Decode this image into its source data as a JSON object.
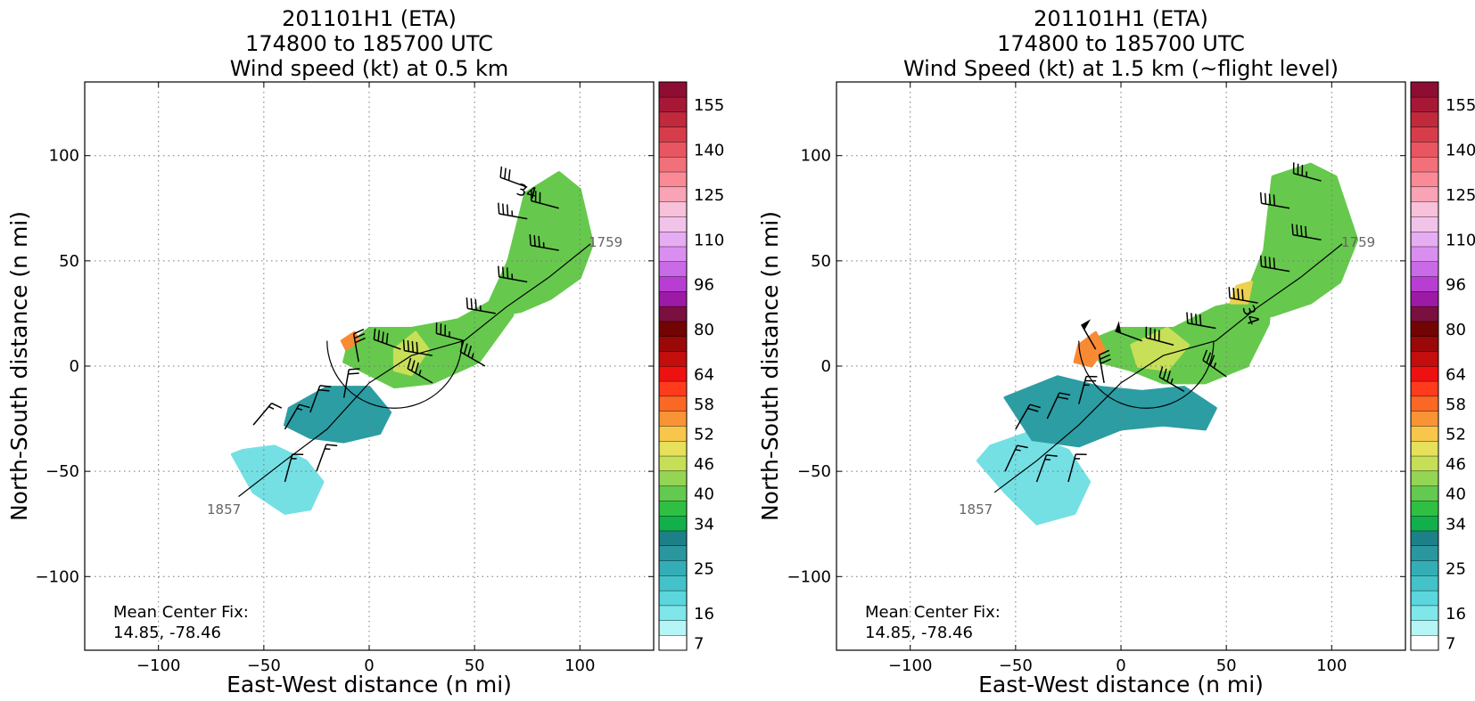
{
  "colors": {
    "ink": "#000000",
    "grid": "#777777",
    "track_label": "#666666",
    "rain_gray": "#6f6f6f"
  },
  "chart_data": [
    {
      "type": "heatmap",
      "title_lines": [
        "201101H1 (ETA)",
        "174800 to 185700 UTC",
        "Wind speed (kt) at 0.5 km"
      ],
      "xlabel": "East-West distance (n mi)",
      "ylabel": "North-South distance (n mi)",
      "xlim": [
        -135,
        135
      ],
      "ylim": [
        -135,
        135
      ],
      "xticks": [
        -100,
        -50,
        0,
        50,
        100
      ],
      "yticks": [
        -100,
        -50,
        0,
        50,
        100
      ],
      "xticklabels": [
        "−100",
        "−50",
        "0",
        "50",
        "100"
      ],
      "yticklabels": [
        "−100",
        "−50",
        "0",
        "50",
        "100"
      ],
      "grid": true,
      "annotation": {
        "line1": "Mean Center Fix:",
        "line2": "14.85, -78.46"
      },
      "track_labels": {
        "start": "1759",
        "end": "1857"
      },
      "contour_label": "34",
      "colorbar": {
        "tick_labels": [
          "7",
          "16",
          "25",
          "34",
          "40",
          "46",
          "52",
          "58",
          "64",
          "80",
          "96",
          "110",
          "125",
          "140",
          "155"
        ]
      },
      "wind_field_regions": [
        {
          "x": [
            -65,
            -55,
            -40,
            -28,
            -22,
            -30,
            -45,
            -60
          ],
          "y": [
            -42,
            -60,
            -70,
            -68,
            -55,
            -45,
            -38,
            -40
          ],
          "speed_kt": 18
        },
        {
          "x": [
            -38,
            -20,
            0,
            10,
            5,
            -12,
            -28,
            -40
          ],
          "y": [
            -20,
            -10,
            -10,
            -22,
            -32,
            -36,
            -34,
            -28
          ],
          "speed_kt": 27
        },
        {
          "x": [
            -10,
            0,
            20,
            42,
            60,
            70,
            68,
            52,
            30,
            12,
            0,
            -12
          ],
          "y": [
            10,
            18,
            18,
            22,
            32,
            40,
            24,
            2,
            -8,
            -10,
            -4,
            2
          ],
          "speed_kt": 38
        },
        {
          "x": [
            56,
            66,
            74,
            90,
            100,
            106,
            100,
            86,
            72,
            60
          ],
          "y": [
            28,
            50,
            82,
            92,
            84,
            58,
            42,
            32,
            26,
            24
          ],
          "speed_kt": 38
        },
        {
          "x": [
            12,
            22,
            28,
            20,
            12
          ],
          "y": [
            8,
            16,
            8,
            -4,
            -2
          ],
          "speed_kt": 44
        },
        {
          "x": [
            -13,
            -7,
            -5,
            -11
          ],
          "y": [
            12,
            16,
            12,
            8
          ],
          "speed_kt": 50
        }
      ],
      "track": {
        "x": [
          -62,
          -40,
          -20,
          0,
          20,
          45,
          65,
          85,
          105
        ],
        "y": [
          -62,
          -45,
          -30,
          -8,
          5,
          12,
          28,
          42,
          58
        ]
      },
      "barbs": [
        {
          "x": -55,
          "y": -28,
          "speed_kt": 15,
          "from_deg": 40
        },
        {
          "x": -40,
          "y": -30,
          "speed_kt": 15,
          "from_deg": 30
        },
        {
          "x": -28,
          "y": -22,
          "speed_kt": 20,
          "from_deg": 20
        },
        {
          "x": -12,
          "y": -15,
          "speed_kt": 20,
          "from_deg": 10
        },
        {
          "x": -5,
          "y": 2,
          "speed_kt": 30,
          "from_deg": 350
        },
        {
          "x": 15,
          "y": 8,
          "speed_kt": 40,
          "from_deg": 290
        },
        {
          "x": 30,
          "y": 5,
          "speed_kt": 40,
          "from_deg": 280
        },
        {
          "x": 45,
          "y": 12,
          "speed_kt": 35,
          "from_deg": 285
        },
        {
          "x": 60,
          "y": 25,
          "speed_kt": 35,
          "from_deg": 280
        },
        {
          "x": 75,
          "y": 40,
          "speed_kt": 35,
          "from_deg": 280
        },
        {
          "x": 90,
          "y": 55,
          "speed_kt": 35,
          "from_deg": 280
        },
        {
          "x": 75,
          "y": 70,
          "speed_kt": 35,
          "from_deg": 280
        },
        {
          "x": 90,
          "y": 75,
          "speed_kt": 30,
          "from_deg": 285
        },
        {
          "x": 75,
          "y": 85,
          "speed_kt": 30,
          "from_deg": 290
        },
        {
          "x": 30,
          "y": -8,
          "speed_kt": 35,
          "from_deg": 300
        },
        {
          "x": 55,
          "y": 0,
          "speed_kt": 35,
          "from_deg": 300
        },
        {
          "x": -25,
          "y": -50,
          "speed_kt": 15,
          "from_deg": 20
        },
        {
          "x": -40,
          "y": -55,
          "speed_kt": 15,
          "from_deg": 15
        }
      ]
    },
    {
      "type": "heatmap",
      "title_lines": [
        "201101H1 (ETA)",
        "174800 to 185700 UTC",
        "Wind Speed (kt) at 1.5 km (~flight level)"
      ],
      "xlabel": "East-West distance (n mi)",
      "ylabel": "North-South distance (n mi)",
      "xlim": [
        -135,
        135
      ],
      "ylim": [
        -135,
        135
      ],
      "xticks": [
        -100,
        -50,
        0,
        50,
        100
      ],
      "yticks": [
        -100,
        -50,
        0,
        50,
        100
      ],
      "xticklabels": [
        "−100",
        "−50",
        "0",
        "50",
        "100"
      ],
      "yticklabels": [
        "−100",
        "−50",
        "0",
        "50",
        "100"
      ],
      "grid": true,
      "annotation": {
        "line1": "Mean Center Fix:",
        "line2": "14.85, -78.46"
      },
      "track_labels": {
        "start": "1759",
        "end": "1857"
      },
      "contour_label": "34",
      "colorbar": {
        "tick_labels": [
          "7",
          "16",
          "25",
          "34",
          "40",
          "46",
          "52",
          "58",
          "64",
          "80",
          "96",
          "110",
          "125",
          "140",
          "155"
        ]
      },
      "wind_field_regions": [
        {
          "x": [
            -68,
            -55,
            -40,
            -22,
            -15,
            -25,
            -45,
            -62
          ],
          "y": [
            -45,
            -60,
            -75,
            -70,
            -55,
            -40,
            -32,
            -38
          ],
          "speed_kt": 19
        },
        {
          "x": [
            -55,
            -30,
            -10,
            10,
            30,
            45,
            40,
            20,
            0,
            -20,
            -42
          ],
          "y": [
            -15,
            -5,
            -10,
            -12,
            -10,
            -20,
            -30,
            -28,
            -30,
            -38,
            -35
          ],
          "speed_kt": 28
        },
        {
          "x": [
            -15,
            0,
            25,
            45,
            65,
            72,
            70,
            60,
            40,
            20,
            5,
            -10
          ],
          "y": [
            12,
            18,
            18,
            28,
            32,
            42,
            20,
            0,
            -8,
            -8,
            -2,
            2
          ],
          "speed_kt": 40
        },
        {
          "x": [
            58,
            68,
            72,
            90,
            102,
            112,
            104,
            90,
            72,
            60
          ],
          "y": [
            30,
            55,
            90,
            96,
            90,
            60,
            40,
            30,
            24,
            22
          ],
          "speed_kt": 40
        },
        {
          "x": [
            5,
            22,
            32,
            22,
            8
          ],
          "y": [
            10,
            18,
            10,
            -2,
            0
          ],
          "speed_kt": 44
        },
        {
          "x": [
            55,
            62,
            60,
            52
          ],
          "y": [
            38,
            40,
            30,
            30
          ],
          "speed_kt": 46
        },
        {
          "x": [
            -20,
            -12,
            -8,
            -14,
            -22
          ],
          "y": [
            10,
            16,
            8,
            0,
            2
          ],
          "speed_kt": 51
        }
      ],
      "track": {
        "x": [
          -60,
          -40,
          -20,
          0,
          20,
          45,
          65,
          85,
          105
        ],
        "y": [
          -60,
          -45,
          -28,
          -8,
          5,
          12,
          28,
          42,
          58
        ]
      },
      "barbs": [
        {
          "x": -50,
          "y": -30,
          "speed_kt": 20,
          "from_deg": 30
        },
        {
          "x": -35,
          "y": -25,
          "speed_kt": 20,
          "from_deg": 25
        },
        {
          "x": -20,
          "y": -18,
          "speed_kt": 25,
          "from_deg": 15
        },
        {
          "x": -8,
          "y": -8,
          "speed_kt": 30,
          "from_deg": 350
        },
        {
          "x": -12,
          "y": 8,
          "speed_kt": 45,
          "from_deg": 330
        },
        {
          "x": 10,
          "y": 12,
          "speed_kt": 45,
          "from_deg": 290
        },
        {
          "x": 25,
          "y": 10,
          "speed_kt": 40,
          "from_deg": 285
        },
        {
          "x": 45,
          "y": 18,
          "speed_kt": 40,
          "from_deg": 280
        },
        {
          "x": 65,
          "y": 30,
          "speed_kt": 40,
          "from_deg": 280
        },
        {
          "x": 80,
          "y": 45,
          "speed_kt": 40,
          "from_deg": 280
        },
        {
          "x": 95,
          "y": 60,
          "speed_kt": 40,
          "from_deg": 280
        },
        {
          "x": 80,
          "y": 75,
          "speed_kt": 40,
          "from_deg": 280
        },
        {
          "x": 95,
          "y": 88,
          "speed_kt": 35,
          "from_deg": 285
        },
        {
          "x": 30,
          "y": -12,
          "speed_kt": 35,
          "from_deg": 300
        },
        {
          "x": 50,
          "y": -5,
          "speed_kt": 35,
          "from_deg": 305
        },
        {
          "x": -40,
          "y": -55,
          "speed_kt": 15,
          "from_deg": 20
        },
        {
          "x": -25,
          "y": -55,
          "speed_kt": 15,
          "from_deg": 15
        },
        {
          "x": -55,
          "y": -50,
          "speed_kt": 15,
          "from_deg": 25
        }
      ]
    }
  ]
}
